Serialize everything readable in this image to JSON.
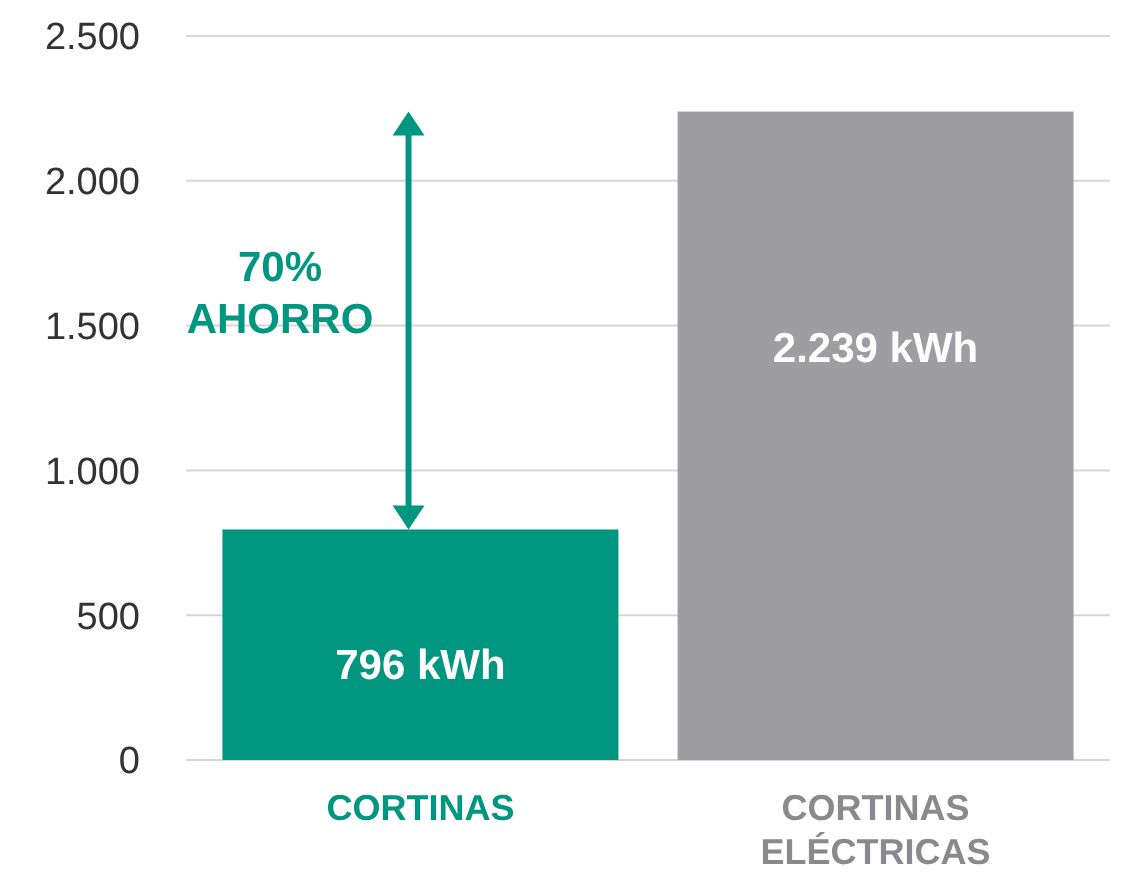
{
  "chart_data": {
    "type": "bar",
    "categories": [
      "CORTINAS",
      "CORTINAS ELÉCTRICAS"
    ],
    "values": [
      796,
      2239
    ],
    "colors": [
      "#00967f",
      "#9e9da1"
    ],
    "value_labels": [
      "796 kWh",
      "2.239 kWh"
    ],
    "ylim": [
      0,
      2500
    ],
    "yticks": [
      0,
      500,
      {
        "value": 1000,
        "label": "1.000"
      },
      {
        "value": 1500,
        "label": "1.500"
      },
      {
        "value": 2000,
        "label": "2.000"
      },
      {
        "value": 2500,
        "label": "2.500"
      }
    ],
    "grid": "y",
    "annotations": [
      "70% AHORRO"
    ]
  }
}
